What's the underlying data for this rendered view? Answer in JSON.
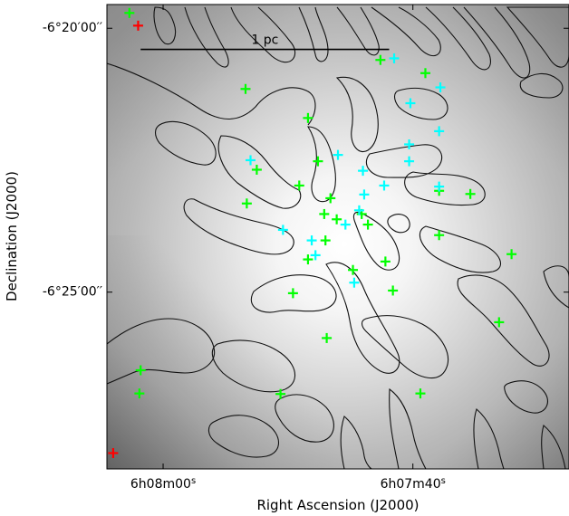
{
  "chart_data": {
    "type": "scatter",
    "description_units": "x in arcseconds of RA offset east of 6h07m40s (time seconds, increasing to the left); y in arcminutes of Dec offset north of -6°25'00\"",
    "xlabel": "Right Ascension (J2000)",
    "ylabel": "Declination (J2000)",
    "x_ticks": [
      {
        "value": 20,
        "main": "6h08m00",
        "sup": "s"
      },
      {
        "value": 0,
        "main": "6h07m40",
        "sup": "s"
      }
    ],
    "y_ticks": [
      {
        "value": 5,
        "label": "-6°20′00′′"
      },
      {
        "value": 0,
        "label": "-6°25′00′′"
      }
    ],
    "xlim": [
      24.5,
      -12.5
    ],
    "ylim": [
      -3.35,
      5.45
    ],
    "scale_bar": {
      "label": "1 pc",
      "x_start": 21.8,
      "x_end": 1.9,
      "y": 4.6
    },
    "colors": {
      "green": "#00ff00",
      "cyan": "#00ffff",
      "red": "#ff0000",
      "contour": "#111111"
    },
    "series": [
      {
        "marker_color": "green",
        "points": [
          [
            22.7,
            5.29
          ],
          [
            13.4,
            3.85
          ],
          [
            8.4,
            3.3
          ],
          [
            12.5,
            2.32
          ],
          [
            9.1,
            2.02
          ],
          [
            13.3,
            1.68
          ],
          [
            6.6,
            1.78
          ],
          [
            6.1,
            1.38
          ],
          [
            7.1,
            1.48
          ],
          [
            4.1,
            1.48
          ],
          [
            2.2,
            0.58
          ],
          [
            8.4,
            0.62
          ],
          [
            2.6,
            4.4
          ],
          [
            7.6,
            2.48
          ],
          [
            3.6,
            1.28
          ],
          [
            4.8,
            0.42
          ],
          [
            -2.1,
            1.92
          ],
          [
            -4.6,
            1.86
          ],
          [
            -2.1,
            1.08
          ],
          [
            7.0,
            0.98
          ],
          [
            1.6,
            0.03
          ],
          [
            9.6,
            -0.02
          ],
          [
            -6.9,
            -0.57
          ],
          [
            6.9,
            -0.87
          ],
          [
            21.8,
            -1.48
          ],
          [
            21.9,
            -1.92
          ],
          [
            -0.6,
            -1.92
          ],
          [
            10.6,
            -1.93
          ],
          [
            -1.0,
            4.15
          ],
          [
            -7.9,
            0.72
          ]
        ]
      },
      {
        "marker_color": "cyan",
        "points": [
          [
            -2.2,
            3.88
          ],
          [
            0.2,
            3.58
          ],
          [
            -2.1,
            3.05
          ],
          [
            1.5,
            4.43
          ],
          [
            0.3,
            2.8
          ],
          [
            0.3,
            2.48
          ],
          [
            3.9,
            1.85
          ],
          [
            4.3,
            1.55
          ],
          [
            5.4,
            1.28
          ],
          [
            -2.1,
            2.0
          ],
          [
            6.0,
            2.6
          ],
          [
            4.0,
            2.3
          ],
          [
            2.3,
            2.02
          ],
          [
            13.0,
            2.5
          ],
          [
            10.4,
            1.18
          ],
          [
            8.1,
            0.98
          ],
          [
            7.8,
            0.7
          ],
          [
            4.7,
            0.18
          ]
        ]
      },
      {
        "marker_color": "red",
        "points": [
          [
            22.0,
            5.05
          ],
          [
            24.0,
            -3.05
          ]
        ]
      }
    ]
  }
}
